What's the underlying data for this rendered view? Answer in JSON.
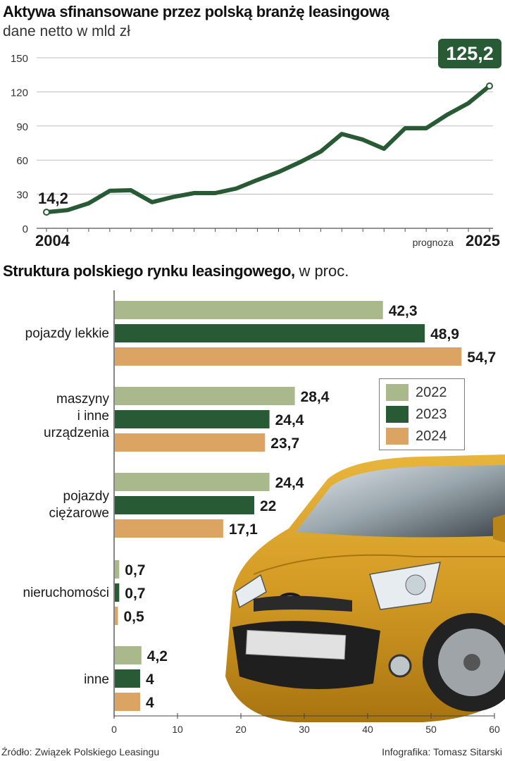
{
  "colors": {
    "line": "#285a35",
    "c2022": "#a9b98c",
    "c2023": "#285a35",
    "c2024": "#dca463",
    "car_body": "#d49b24"
  },
  "line_chart_title": "Aktywa sfinansowane przez polską branżę leasingową",
  "line_chart_subtitle": "dane netto w mld zł",
  "bar_chart_title": "Struktura polskiego rynku leasingowego,",
  "bar_chart_unit": "w proc.",
  "source": "Źródło: Związek Polskiego Leasingu",
  "credit": "Infografika: Tomasz Sitarski",
  "chart_data": [
    {
      "type": "line",
      "title": "Aktywa sfinansowane przez polską branżę leasingową",
      "subtitle": "dane netto w mld zł",
      "x": [
        2004,
        2005,
        2006,
        2007,
        2008,
        2009,
        2010,
        2011,
        2012,
        2013,
        2014,
        2015,
        2016,
        2017,
        2018,
        2019,
        2020,
        2021,
        2022,
        2023,
        2024,
        2025
      ],
      "values": [
        14.2,
        16,
        22,
        33,
        33.5,
        23,
        27.5,
        31,
        31,
        35,
        42.5,
        49.5,
        58,
        67.5,
        83,
        78,
        70,
        88,
        88,
        100,
        110,
        125.2
      ],
      "ylim": [
        0,
        150
      ],
      "yticks": [
        0,
        30,
        60,
        90,
        120,
        150
      ],
      "x_tick_labels": [
        "2004",
        "2025"
      ],
      "start_label": "14,2",
      "end_label": "125,2",
      "forecast_label": "prognoza",
      "grid": true
    },
    {
      "type": "bar",
      "orientation": "horizontal",
      "title": "Struktura polskiego rynku leasingowego,",
      "unit": "w proc.",
      "categories": [
        "pojazdy lekkie",
        "maszyny\ni inne\nurządzenia",
        "pojazdy\nciężarowe",
        "nieruchomości",
        "inne"
      ],
      "series": [
        {
          "name": "2022",
          "values": [
            42.3,
            28.4,
            24.4,
            0.7,
            4.2
          ],
          "labels": [
            "42,3",
            "28,4",
            "24,4",
            "0,7",
            "4,2"
          ]
        },
        {
          "name": "2023",
          "values": [
            48.9,
            24.4,
            22,
            0.7,
            4
          ],
          "labels": [
            "48,9",
            "24,4",
            "22",
            "0,7",
            "4"
          ]
        },
        {
          "name": "2024",
          "values": [
            54.7,
            23.7,
            17.1,
            0.5,
            4
          ],
          "labels": [
            "54,7",
            "23,7",
            "17,1",
            "0,5",
            "4"
          ]
        }
      ],
      "xlim": [
        0,
        60
      ],
      "xticks": [
        0,
        10,
        20,
        30,
        40,
        50,
        60
      ],
      "legend_position": "right"
    }
  ]
}
